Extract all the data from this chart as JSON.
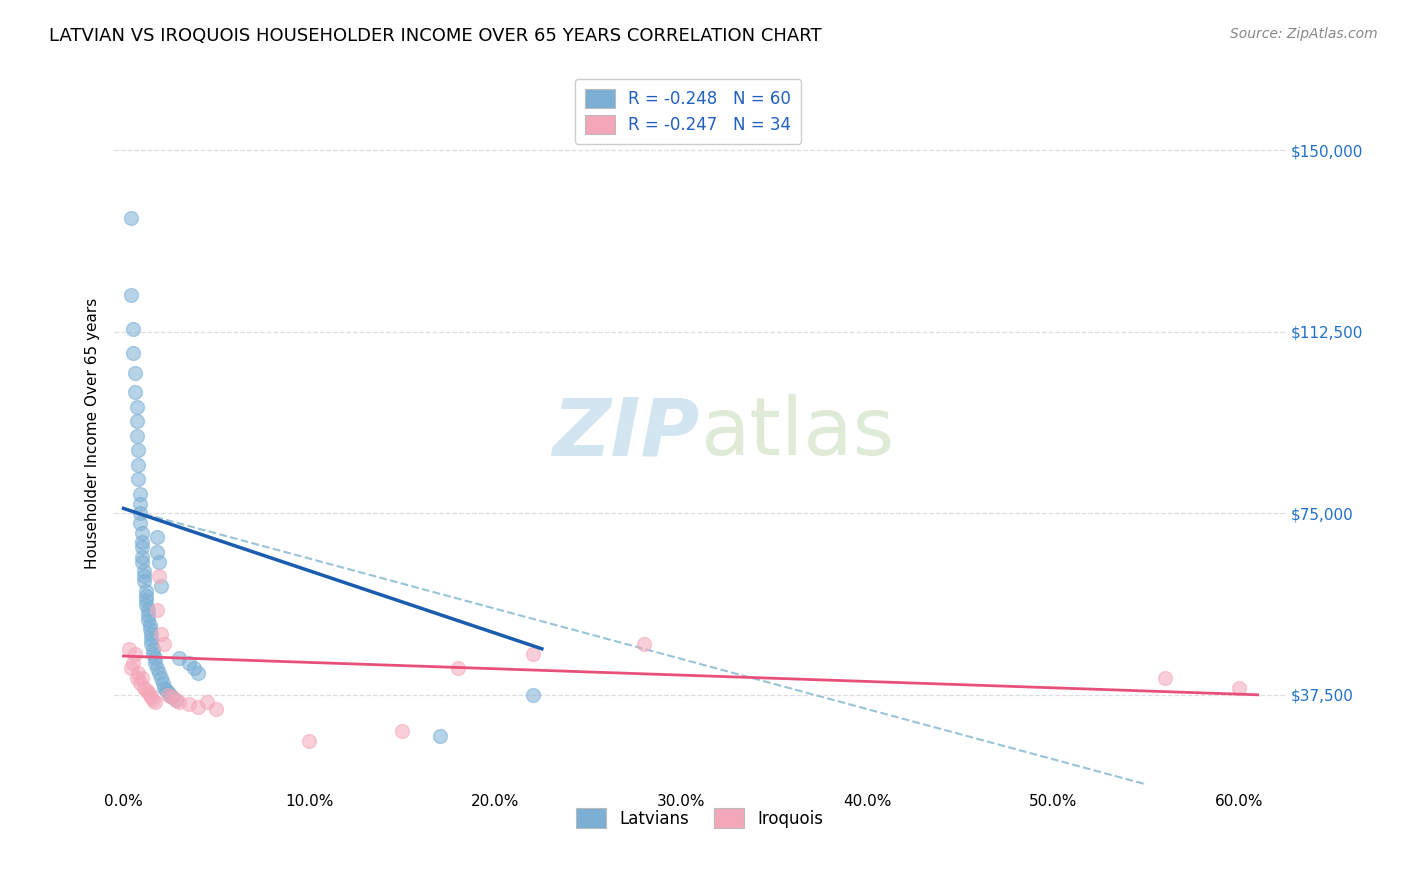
{
  "title": "LATVIAN VS IROQUOIS HOUSEHOLDER INCOME OVER 65 YEARS CORRELATION CHART",
  "source": "Source: ZipAtlas.com",
  "ylabel": "Householder Income Over 65 years",
  "xlabel_ticks": [
    "0.0%",
    "10.0%",
    "20.0%",
    "30.0%",
    "40.0%",
    "50.0%",
    "60.0%"
  ],
  "xlabel_vals": [
    0.0,
    0.1,
    0.2,
    0.3,
    0.4,
    0.5,
    0.6
  ],
  "ytick_labels": [
    "$37,500",
    "$75,000",
    "$112,500",
    "$150,000"
  ],
  "ytick_vals": [
    37500,
    75000,
    112500,
    150000
  ],
  "ylim": [
    18000,
    165000
  ],
  "xlim": [
    -0.005,
    0.625
  ],
  "latvian_color": "#7BAFD4",
  "iroquois_color": "#F4A7B9",
  "latvian_line_color": "#1A5CB0",
  "iroquois_line_color": "#E8507A",
  "dashed_line_color": "#99C4D8",
  "legend_latvian_label": "R = -0.248   N = 60",
  "legend_iroquois_label": "R = -0.247   N = 34",
  "bottom_legend_latvians": "Latvians",
  "bottom_legend_iroquois": "Iroquois",
  "watermark_zip": "ZIP",
  "watermark_atlas": "atlas",
  "latvian_x": [
    0.004,
    0.004,
    0.005,
    0.005,
    0.006,
    0.006,
    0.007,
    0.007,
    0.007,
    0.008,
    0.008,
    0.008,
    0.009,
    0.009,
    0.009,
    0.009,
    0.01,
    0.01,
    0.01,
    0.01,
    0.01,
    0.011,
    0.011,
    0.011,
    0.012,
    0.012,
    0.012,
    0.012,
    0.013,
    0.013,
    0.013,
    0.014,
    0.014,
    0.015,
    0.015,
    0.015,
    0.016,
    0.016,
    0.017,
    0.017,
    0.018,
    0.018,
    0.018,
    0.019,
    0.019,
    0.02,
    0.02,
    0.021,
    0.022,
    0.023,
    0.024,
    0.025,
    0.026,
    0.028,
    0.03,
    0.035,
    0.038,
    0.04,
    0.17,
    0.22
  ],
  "latvian_y": [
    136000,
    120000,
    113000,
    108000,
    104000,
    100000,
    97000,
    94000,
    91000,
    88000,
    85000,
    82000,
    79000,
    77000,
    75000,
    73000,
    71000,
    69000,
    68000,
    66000,
    65000,
    63000,
    62000,
    61000,
    59000,
    58000,
    57000,
    56000,
    55000,
    54000,
    53000,
    52000,
    51000,
    50000,
    49000,
    48000,
    47000,
    46000,
    45000,
    44000,
    70000,
    67000,
    43000,
    65000,
    42000,
    60000,
    41000,
    40000,
    39000,
    38500,
    38000,
    37500,
    37000,
    36500,
    45000,
    44000,
    43000,
    42000,
    29000,
    37500
  ],
  "iroquois_x": [
    0.003,
    0.004,
    0.005,
    0.006,
    0.007,
    0.008,
    0.009,
    0.01,
    0.011,
    0.012,
    0.013,
    0.014,
    0.015,
    0.016,
    0.017,
    0.018,
    0.019,
    0.02,
    0.022,
    0.024,
    0.026,
    0.028,
    0.03,
    0.035,
    0.04,
    0.045,
    0.05,
    0.1,
    0.15,
    0.18,
    0.22,
    0.28,
    0.56,
    0.6
  ],
  "iroquois_y": [
    47000,
    43000,
    44000,
    46000,
    41000,
    42000,
    40000,
    41000,
    39000,
    38500,
    38000,
    37500,
    37000,
    36500,
    36000,
    55000,
    62000,
    50000,
    48000,
    37500,
    37000,
    36500,
    36000,
    35500,
    35000,
    36000,
    34500,
    28000,
    30000,
    43000,
    46000,
    48000,
    41000,
    39000
  ],
  "latvian_trend_x0": 0.0,
  "latvian_trend_y0": 76000,
  "latvian_trend_x1": 0.225,
  "latvian_trend_y1": 47000,
  "iroquois_trend_x0": 0.0,
  "iroquois_trend_y0": 45500,
  "iroquois_trend_x1": 0.61,
  "iroquois_trend_y1": 37500,
  "dashed_trend_x0": 0.0,
  "dashed_trend_y0": 76000,
  "dashed_trend_x1": 0.55,
  "dashed_trend_y1": 19000,
  "title_fontsize": 13,
  "source_fontsize": 10,
  "axis_label_fontsize": 11,
  "tick_fontsize": 11,
  "legend_fontsize": 12,
  "watermark_fontsize_zip": 58,
  "watermark_fontsize_atlas": 58,
  "background_color": "#FFFFFF",
  "grid_color": "#DDDDDD",
  "marker_size": 100,
  "marker_alpha": 0.55,
  "marker_edgewidth": 1.0
}
